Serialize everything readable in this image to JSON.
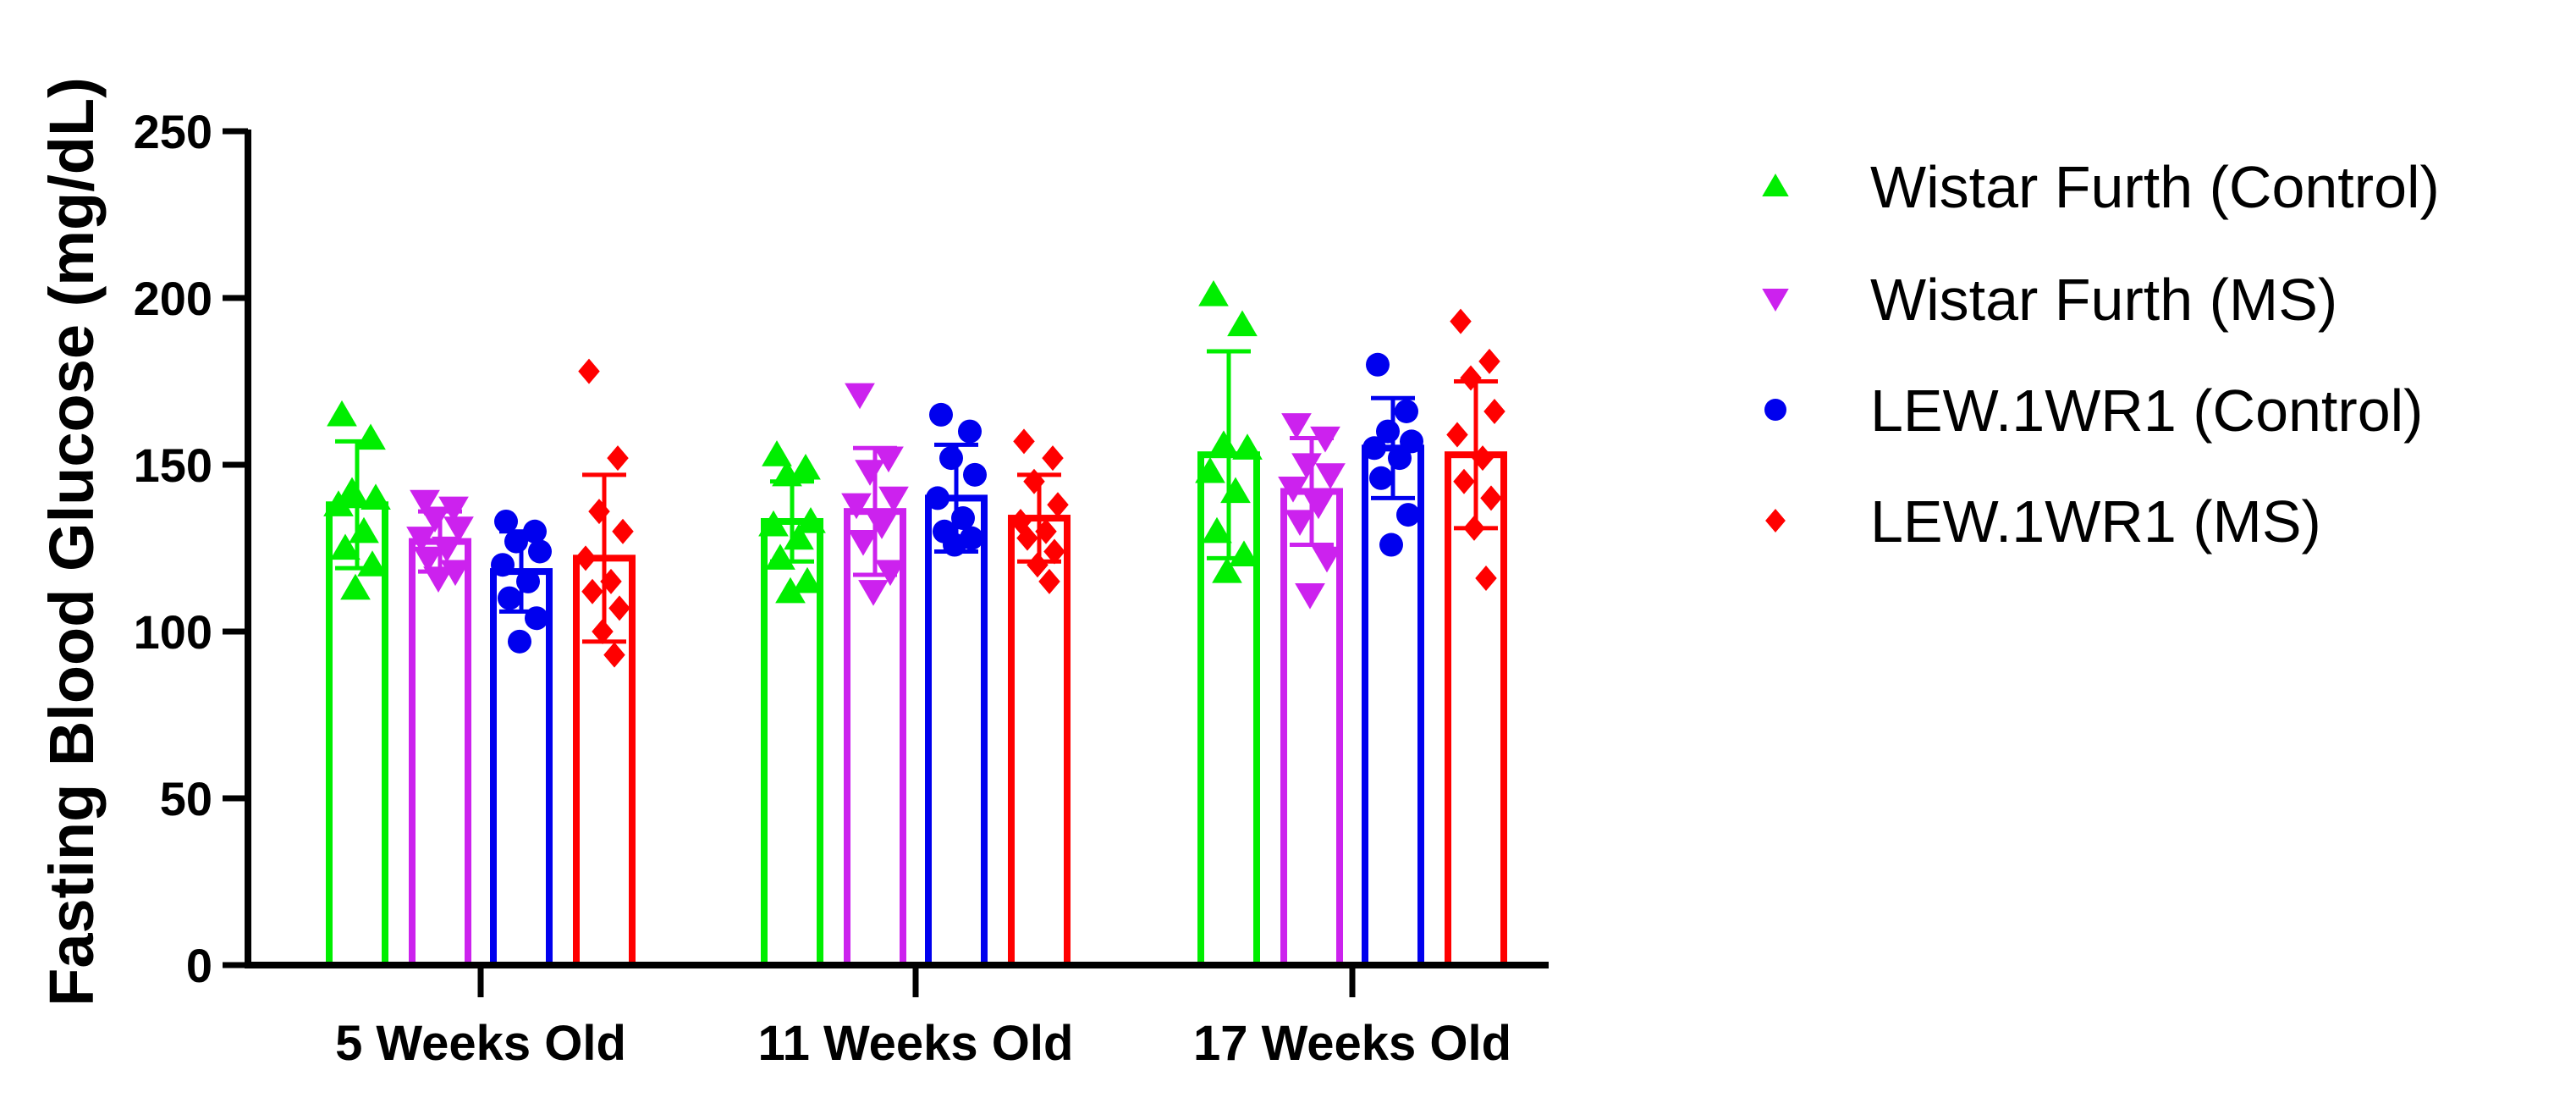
{
  "chart_data": {
    "type": "bar",
    "title": "",
    "xlabel": "",
    "ylabel": "Fasting Blood Glucose (mg/dL)",
    "ylim": [
      0,
      250
    ],
    "yticks": [
      0,
      50,
      100,
      150,
      200,
      250
    ],
    "categories": [
      "5 Weeks Old",
      "11 Weeks Old",
      "17 Weeks Old"
    ],
    "legend_position": "right",
    "series": [
      {
        "name": "Wistar Furth (Control)",
        "color": "#00ee00",
        "marker": "triangle-up",
        "means": [
          138,
          133,
          153
        ],
        "sd": [
          19,
          12,
          31
        ],
        "points": [
          [
            165,
            158,
            142,
            140,
            138,
            130,
            125,
            120,
            113
          ],
          [
            153,
            149,
            147,
            133,
            132,
            128,
            122,
            115,
            112
          ],
          [
            201,
            192,
            156,
            155,
            148,
            142,
            130,
            123,
            118
          ]
        ]
      },
      {
        "name": "Wistar Furth (MS)",
        "color": "#cc22ee",
        "marker": "triangle-down",
        "means": [
          127,
          136,
          142
        ],
        "sd": [
          9,
          19,
          16
        ],
        "points": [
          [
            139,
            137,
            134,
            131,
            128,
            125,
            122,
            118,
            116
          ],
          [
            171,
            152,
            148,
            140,
            138,
            132,
            127,
            118,
            112
          ],
          [
            162,
            158,
            150,
            147,
            143,
            138,
            133,
            122,
            111
          ]
        ]
      },
      {
        "name": "LEW.1WR1 (Control)",
        "color": "#0000ee",
        "marker": "circle",
        "means": [
          118,
          140,
          155
        ],
        "sd": [
          12,
          16,
          15
        ],
        "points": [
          [
            133,
            130,
            127,
            124,
            120,
            115,
            110,
            104,
            97
          ],
          [
            165,
            160,
            152,
            147,
            140,
            134,
            130,
            128,
            126
          ],
          [
            180,
            166,
            160,
            157,
            155,
            152,
            146,
            135,
            126
          ]
        ]
      },
      {
        "name": "LEW.1WR1 (MS)",
        "color": "#ff0000",
        "marker": "diamond",
        "means": [
          122,
          134,
          153
        ],
        "sd": [
          25,
          13,
          22
        ],
        "points": [
          [
            178,
            152,
            136,
            130,
            122,
            115,
            112,
            107,
            100,
            93
          ],
          [
            157,
            152,
            145,
            138,
            133,
            130,
            128,
            124,
            120,
            115
          ],
          [
            193,
            181,
            176,
            166,
            159,
            152,
            145,
            140,
            131,
            116
          ]
        ]
      }
    ]
  }
}
